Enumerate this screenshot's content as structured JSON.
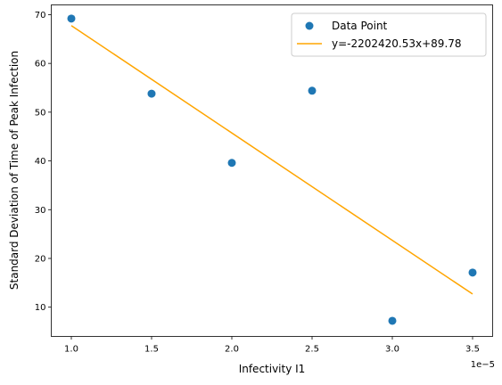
{
  "chart_data": {
    "type": "scatter",
    "xlabel": "Infectivity I1",
    "ylabel": "Standard Deviation of Time of Peak Infection",
    "x_offset_text": "1e−5",
    "x_scale_factor": 1e-05,
    "xlim": [
      8.75e-06,
      3.625e-05
    ],
    "ylim": [
      4.0,
      72.0
    ],
    "x_ticks": [
      1e-05,
      1.5e-05,
      2e-05,
      2.5e-05,
      3e-05,
      3.5e-05
    ],
    "x_tick_labels": [
      "1.0",
      "1.5",
      "2.0",
      "2.5",
      "3.0",
      "3.5"
    ],
    "y_ticks": [
      10,
      20,
      30,
      40,
      50,
      60,
      70
    ],
    "y_tick_labels": [
      "10",
      "20",
      "30",
      "40",
      "50",
      "60",
      "70"
    ],
    "grid": false,
    "legend_position": "top-right",
    "series": [
      {
        "name": "Data Point",
        "kind": "scatter",
        "color": "#1f77b4",
        "points": [
          {
            "x": 1e-05,
            "y": 69.2
          },
          {
            "x": 1.5e-05,
            "y": 53.8
          },
          {
            "x": 2e-05,
            "y": 39.6
          },
          {
            "x": 2.5e-05,
            "y": 54.4
          },
          {
            "x": 3e-05,
            "y": 7.2
          },
          {
            "x": 3.5e-05,
            "y": 17.1
          }
        ]
      },
      {
        "name": "y=-2202420.53x+89.78",
        "kind": "line",
        "color": "#ffa500",
        "slope": -2202420.53,
        "intercept": 89.78,
        "x_range": [
          1e-05,
          3.5e-05
        ]
      }
    ]
  }
}
